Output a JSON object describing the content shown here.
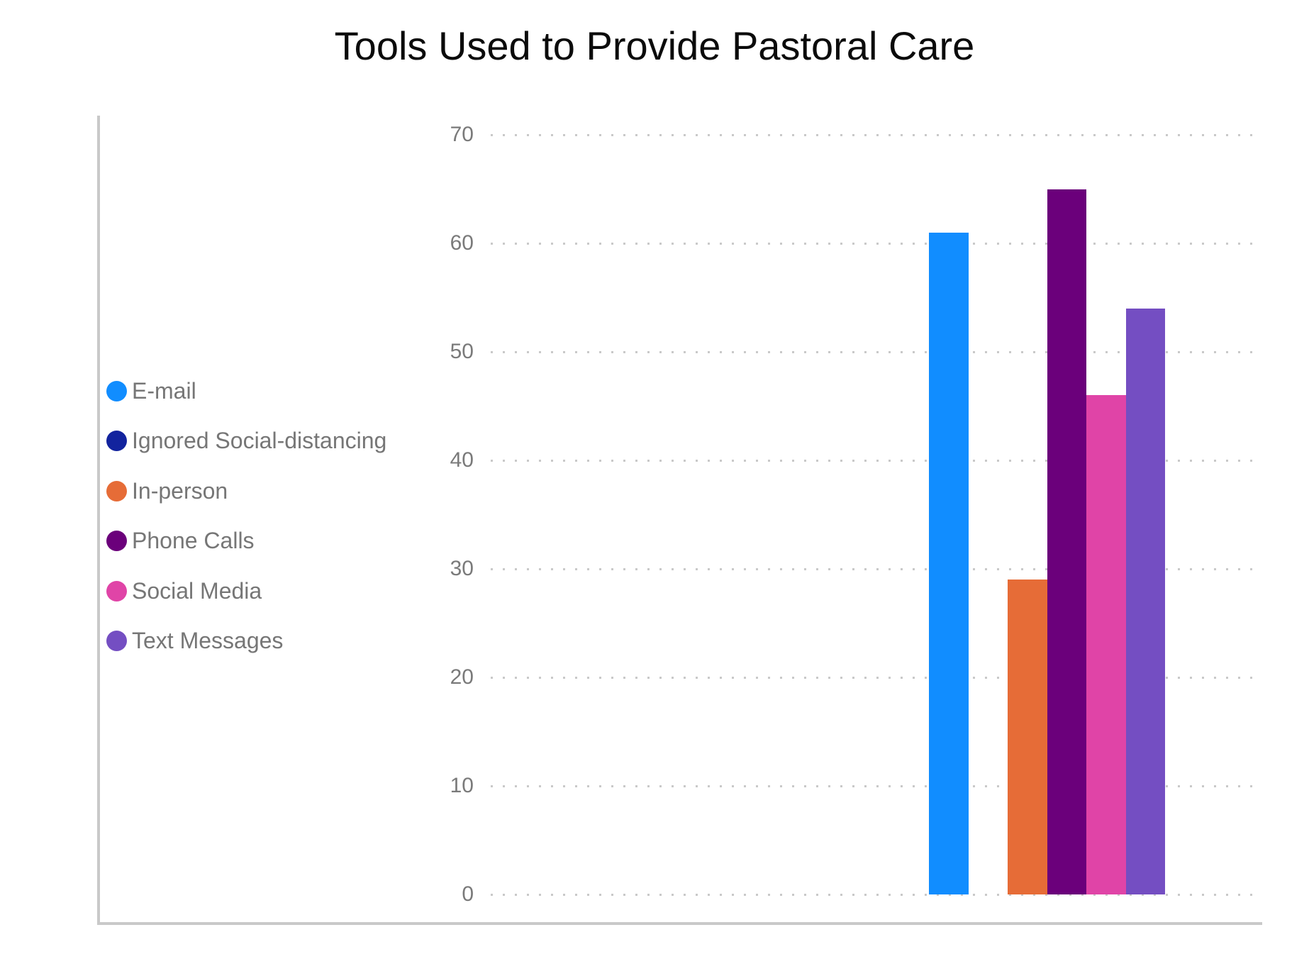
{
  "chart_data": {
    "type": "bar",
    "title": "Tools Used to Provide Pastoral Care",
    "xlabel": "",
    "ylabel": "",
    "ylim": [
      0,
      70
    ],
    "yticks": [
      70,
      60,
      50,
      40,
      30,
      20,
      10,
      0
    ],
    "grid": "horizontal-dotted",
    "legend_position": "left",
    "categories": [
      "E-mail",
      "Ignored Social-distancing",
      "In-person",
      "Phone Calls",
      "Social Media",
      "Text Messages"
    ],
    "series": [
      {
        "name": "E-mail",
        "value": 61,
        "color": "#118DFF"
      },
      {
        "name": "Ignored Social-distancing",
        "value": 0,
        "color": "#12239E"
      },
      {
        "name": "In-person",
        "value": 29,
        "color": "#E66C37"
      },
      {
        "name": "Phone Calls",
        "value": 65,
        "color": "#6B007B"
      },
      {
        "name": "Social Media",
        "value": 46,
        "color": "#E044A7"
      },
      {
        "name": "Text Messages",
        "value": 54,
        "color": "#744EC2"
      }
    ]
  },
  "colors": {
    "title": "#0b0b0b",
    "axis_label": "#7a7a7a",
    "legend_label": "#767676",
    "gridline": "#c9c9c9",
    "axis_border": "#c9c9c9",
    "background": "#ffffff"
  }
}
